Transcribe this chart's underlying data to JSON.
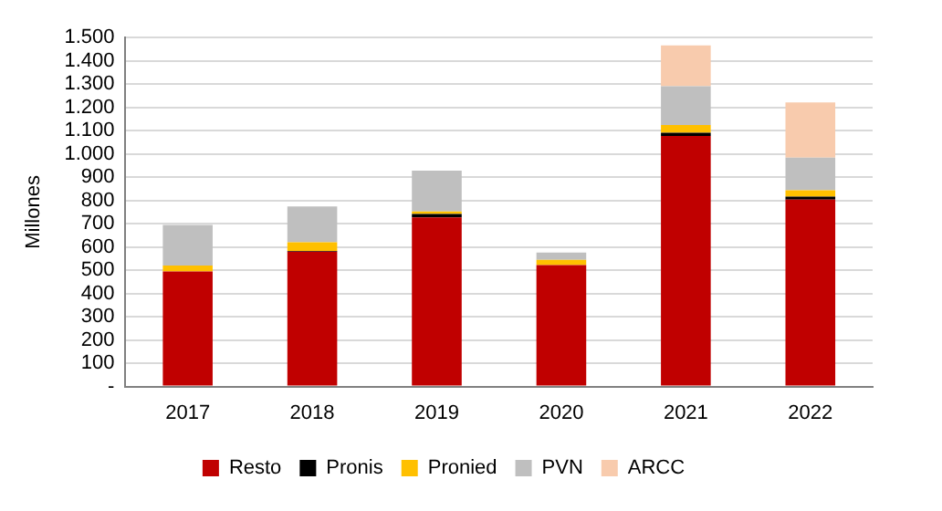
{
  "chart_data": {
    "type": "bar",
    "stacked": true,
    "ylabel": "Millones",
    "categories": [
      "2017",
      "2018",
      "2019",
      "2020",
      "2021",
      "2022"
    ],
    "series": [
      {
        "name": "Resto",
        "color": "#c00000",
        "values": [
          495,
          580,
          727,
          522,
          1077,
          804
        ]
      },
      {
        "name": "Pronis",
        "color": "#000000",
        "values": [
          0,
          3,
          15,
          0,
          14,
          12
        ]
      },
      {
        "name": "Pronied",
        "color": "#ffc000",
        "values": [
          25,
          37,
          11,
          23,
          33,
          28
        ]
      },
      {
        "name": "PVN",
        "color": "#bfbfbf",
        "values": [
          175,
          154,
          175,
          31,
          167,
          140
        ]
      },
      {
        "name": "ARCC",
        "color": "#f8cbad",
        "values": [
          0,
          0,
          0,
          0,
          175,
          237
        ]
      }
    ],
    "ylim": [
      0,
      1500
    ],
    "yticks": [
      {
        "value": 0,
        "label": "-"
      },
      {
        "value": 100,
        "label": "100"
      },
      {
        "value": 200,
        "label": "200"
      },
      {
        "value": 300,
        "label": "300"
      },
      {
        "value": 400,
        "label": "400"
      },
      {
        "value": 500,
        "label": "500"
      },
      {
        "value": 600,
        "label": "600"
      },
      {
        "value": 700,
        "label": "700"
      },
      {
        "value": 800,
        "label": "800"
      },
      {
        "value": 900,
        "label": "900"
      },
      {
        "value": 1000,
        "label": "1.000"
      },
      {
        "value": 1100,
        "label": "1.100"
      },
      {
        "value": 1200,
        "label": "1.200"
      },
      {
        "value": 1300,
        "label": "1.300"
      },
      {
        "value": 1400,
        "label": "1.400"
      },
      {
        "value": 1500,
        "label": "1.500"
      }
    ],
    "grid": "y",
    "legend": "bottom"
  }
}
